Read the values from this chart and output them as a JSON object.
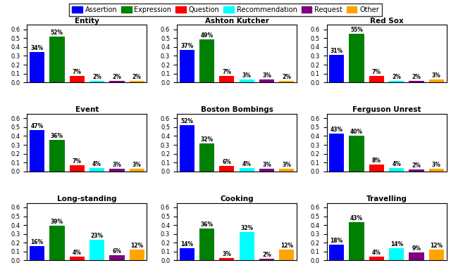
{
  "categories": [
    "Assertion",
    "Expression",
    "Question",
    "Recommendation",
    "Request",
    "Other"
  ],
  "colors": [
    "#0000ff",
    "#008000",
    "#ff0000",
    "#00ffff",
    "#800080",
    "#ffa500"
  ],
  "subplots": [
    {
      "title": "Entity",
      "values": [
        0.34,
        0.52,
        0.07,
        0.02,
        0.02,
        0.02
      ]
    },
    {
      "title": "Ashton Kutcher",
      "values": [
        0.37,
        0.49,
        0.07,
        0.03,
        0.03,
        0.02
      ]
    },
    {
      "title": "Red Sox",
      "values": [
        0.31,
        0.55,
        0.07,
        0.02,
        0.02,
        0.03
      ]
    },
    {
      "title": "Event",
      "values": [
        0.47,
        0.36,
        0.07,
        0.04,
        0.03,
        0.03
      ]
    },
    {
      "title": "Boston Bombings",
      "values": [
        0.52,
        0.32,
        0.06,
        0.04,
        0.03,
        0.03
      ]
    },
    {
      "title": "Ferguson Unrest",
      "values": [
        0.43,
        0.4,
        0.08,
        0.04,
        0.02,
        0.03
      ]
    },
    {
      "title": "Long-standing",
      "values": [
        0.16,
        0.39,
        0.04,
        0.23,
        0.06,
        0.12
      ]
    },
    {
      "title": "Cooking",
      "values": [
        0.14,
        0.36,
        0.03,
        0.32,
        0.02,
        0.12
      ]
    },
    {
      "title": "Travelling",
      "values": [
        0.18,
        0.43,
        0.04,
        0.14,
        0.09,
        0.12
      ]
    }
  ],
  "ylim": [
    0,
    0.65
  ],
  "yticks": [
    0.0,
    0.1,
    0.2,
    0.3,
    0.4,
    0.5,
    0.6
  ],
  "legend_labels": [
    "Assertion",
    "Expression",
    "Question",
    "Recommendation",
    "Request",
    "Other"
  ]
}
